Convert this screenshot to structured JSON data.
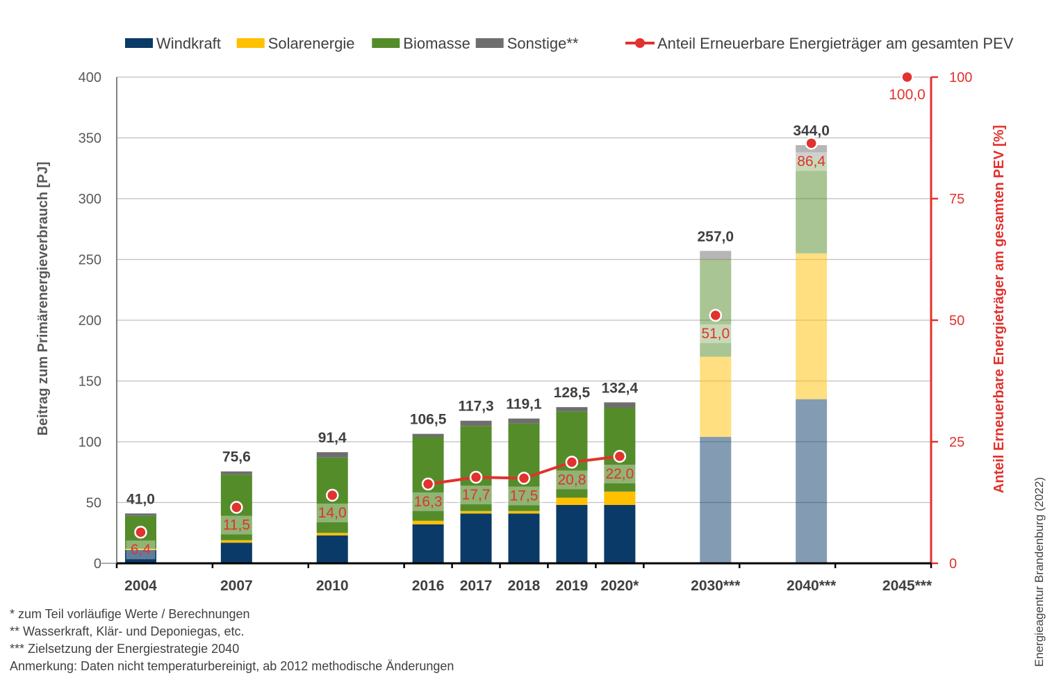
{
  "chart_data": {
    "type": "bar",
    "stacked": true,
    "categories": [
      "2004",
      "2007",
      "2010",
      "2016",
      "2017",
      "2018",
      "2019",
      "2020*",
      "2030***",
      "2040***",
      "2045***"
    ],
    "series": [
      {
        "name": "Windkraft",
        "color": "#0a3a67",
        "values": [
          11,
          17,
          23,
          32,
          41,
          41,
          48,
          48,
          104,
          135,
          null
        ]
      },
      {
        "name": "Solarenergie",
        "color": "#ffc000",
        "values": [
          1,
          2,
          2,
          3,
          2,
          2,
          6,
          11,
          66,
          120,
          null
        ]
      },
      {
        "name": "Biomasse",
        "color": "#548c2a",
        "values": [
          27,
          54,
          62,
          69,
          70,
          72,
          71,
          69,
          80,
          78,
          null
        ]
      },
      {
        "name": "Sonstige**",
        "color": "#6e6e6e",
        "values": [
          2,
          2.6,
          4.4,
          2.5,
          4.3,
          4.1,
          3.5,
          4.4,
          7,
          11,
          null
        ]
      }
    ],
    "projection_categories": [
      "2030***",
      "2040***",
      "2045***"
    ],
    "totals": [
      41.0,
      75.6,
      91.4,
      106.5,
      117.3,
      119.1,
      128.5,
      132.4,
      257.0,
      344.0,
      null
    ],
    "total_labels": [
      "41,0",
      "75,6",
      "91,4",
      "106,5",
      "117,3",
      "119,1",
      "128,5",
      "132,4",
      "257,0",
      "344,0",
      ""
    ],
    "line_series": {
      "name": "Anteil Erneuerbare Energieträger am gesamten PEV",
      "color": "#e1322d",
      "values": [
        6.4,
        11.5,
        14.0,
        16.3,
        17.7,
        17.5,
        20.8,
        22.0,
        51.0,
        86.4,
        100.0
      ],
      "labels": [
        "6,4",
        "11,5",
        "14,0",
        "16,3",
        "17,7",
        "17,5",
        "20,8",
        "22,0",
        "51,0",
        "86,4",
        "100,0"
      ],
      "connected_categories": [
        "2016",
        "2017",
        "2018",
        "2019",
        "2020*"
      ]
    },
    "ylabel": "Beitrag zum Primärenergieverbrauch [PJ]",
    "y2label": "Anteil Erneuerbare Energieträger am gesamten PEV [%]",
    "ylim": [
      0,
      400
    ],
    "yticks": [
      0,
      50,
      100,
      150,
      200,
      250,
      300,
      350,
      400
    ],
    "y2lim": [
      0,
      100
    ],
    "y2ticks": [
      0,
      25,
      50,
      75,
      100
    ],
    "grid": true,
    "legend_position": "top"
  },
  "notes": [
    "*   zum Teil vorläufige Werte / Berechnungen",
    "**  Wasserkraft, Klär- und Deponiegas, etc.",
    "*** Zielsetzung der Energiestrategie 2040",
    "Anmerkung: Daten nicht temperaturbereinigt, ab 2012 methodische Änderungen"
  ],
  "credit": "Energieagentur Brandenburg (2022)"
}
